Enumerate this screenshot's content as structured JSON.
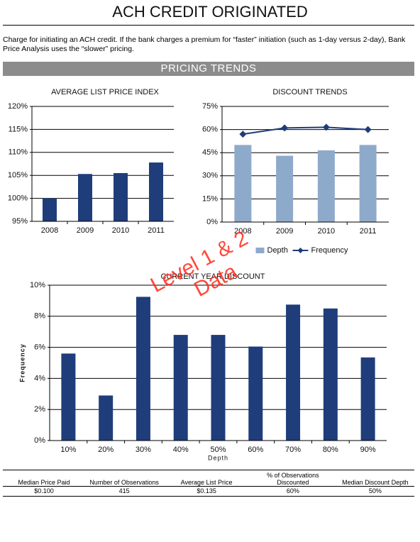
{
  "header": {
    "title": "ACH CREDIT ORIGINATED",
    "description": "Charge for initiating an ACH credit. If the bank charges a premium for “faster” initiation (such as 1-day versus 2-day), Bank Price Analysis uses the “slower” pricing.",
    "section": "PRICING TRENDS"
  },
  "chart_data": [
    {
      "type": "bar",
      "title": "AVERAGE LIST PRICE INDEX",
      "categories": [
        "2008",
        "2009",
        "2010",
        "2011"
      ],
      "values": [
        100,
        105.3,
        105.5,
        107.8
      ],
      "color": "#1f3d7a",
      "ylim": [
        95,
        120
      ],
      "yticks": [
        {
          "value": 95,
          "label": "95%"
        },
        {
          "value": 100,
          "label": "100%"
        },
        {
          "value": 105,
          "label": "105%"
        },
        {
          "value": 110,
          "label": "110%"
        },
        {
          "value": 115,
          "label": "115%"
        },
        {
          "value": 120,
          "label": "120%"
        }
      ],
      "grid": true
    },
    {
      "type": "bar",
      "title": "DISCOUNT TRENDS",
      "categories": [
        "2008",
        "2009",
        "2010",
        "2011"
      ],
      "series": [
        {
          "name": "Depth",
          "type": "bar",
          "color": "#8eaacb",
          "values": [
            50,
            43,
            46.5,
            50
          ]
        },
        {
          "name": "Frequency",
          "type": "line",
          "color": "#1f3d7a",
          "values": [
            57,
            61,
            61.5,
            60
          ]
        }
      ],
      "ylim": [
        0,
        75
      ],
      "yticks": [
        {
          "value": 0,
          "label": "0%"
        },
        {
          "value": 15,
          "label": "15%"
        },
        {
          "value": 30,
          "label": "30%"
        },
        {
          "value": 45,
          "label": "45%"
        },
        {
          "value": 60,
          "label": "60%"
        },
        {
          "value": 75,
          "label": "75%"
        }
      ],
      "grid": true,
      "legend": "bottom"
    },
    {
      "type": "bar",
      "title": "CURRENT YEAR DISCOUNT",
      "x_label": "Depth",
      "y_label": "Frequency",
      "categories": [
        "10%",
        "20%",
        "30%",
        "40%",
        "50%",
        "60%",
        "70%",
        "80%",
        "90%"
      ],
      "values": [
        5.6,
        2.9,
        9.25,
        6.8,
        6.8,
        6.05,
        8.75,
        8.5,
        5.35
      ],
      "color": "#1f3d7a",
      "ylim": [
        0,
        10
      ],
      "yticks": [
        {
          "value": 0,
          "label": "0%"
        },
        {
          "value": 2,
          "label": "2%"
        },
        {
          "value": 4,
          "label": "4%"
        },
        {
          "value": 6,
          "label": "6%"
        },
        {
          "value": 8,
          "label": "8%"
        },
        {
          "value": 10,
          "label": "10%"
        }
      ],
      "grid": true
    }
  ],
  "watermark": [
    "Level 1 & 2",
    "Data"
  ],
  "table": {
    "headers": [
      "Median Price Paid",
      "Number of Observations",
      "Average List Price",
      "% of Observations Discounted",
      "Median Discount Depth"
    ],
    "rows": [
      [
        "$0.100",
        "415",
        "$0.135",
        "60%",
        "50%"
      ]
    ]
  }
}
